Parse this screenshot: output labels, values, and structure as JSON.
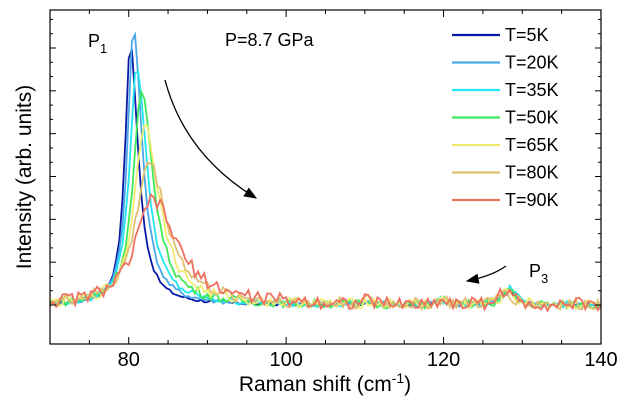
{
  "chart_data": {
    "type": "line",
    "xlabel": "Raman shift (cm",
    "xlabel_sup": "-1",
    "xlabel_close": ")",
    "ylabel": "Intensity (arb. units)",
    "xlim": [
      70,
      140
    ],
    "ylim": [
      0,
      1.12
    ],
    "x_ticks": [
      80,
      100,
      120,
      140
    ],
    "x_tick_labels": [
      "80",
      "100",
      "120",
      "140"
    ],
    "grid": false,
    "legend_position": "top-right",
    "annotations": {
      "pressure": "P=8.7 GPa",
      "peak1_main": "P",
      "peak1_sub": "1",
      "peak3_main": "P",
      "peak3_sub": "3"
    },
    "series": [
      {
        "name": "T=5K",
        "color": "#0a1aa8",
        "peak_x": 80.2,
        "peak_y": 0.92,
        "width": 0.95,
        "p3_x": 128.2,
        "p3_y": 0.05
      },
      {
        "name": "T=20K",
        "color": "#4aa8e8",
        "peak_x": 80.6,
        "peak_y": 0.97,
        "width": 1.05,
        "p3_x": 128.4,
        "p3_y": 0.06
      },
      {
        "name": "T=35K",
        "color": "#22e6ee",
        "peak_x": 81.0,
        "peak_y": 0.84,
        "width": 1.25,
        "p3_x": 128.6,
        "p3_y": 0.06
      },
      {
        "name": "T=50K",
        "color": "#3ee85a",
        "peak_x": 81.6,
        "peak_y": 0.74,
        "width": 1.5,
        "p3_x": 128.4,
        "p3_y": 0.05
      },
      {
        "name": "T=65K",
        "color": "#f0ec70",
        "peak_x": 82.0,
        "peak_y": 0.64,
        "width": 1.8,
        "p3_x": 128.2,
        "p3_y": 0.05
      },
      {
        "name": "T=80K",
        "color": "#e0c070",
        "peak_x": 82.5,
        "peak_y": 0.5,
        "width": 2.3,
        "p3_x": 127.9,
        "p3_y": 0.05
      },
      {
        "name": "T=90K",
        "color": "#f07060",
        "peak_x": 83.0,
        "peak_y": 0.37,
        "width": 3.0,
        "p3_x": 127.8,
        "p3_y": 0.05
      }
    ]
  }
}
